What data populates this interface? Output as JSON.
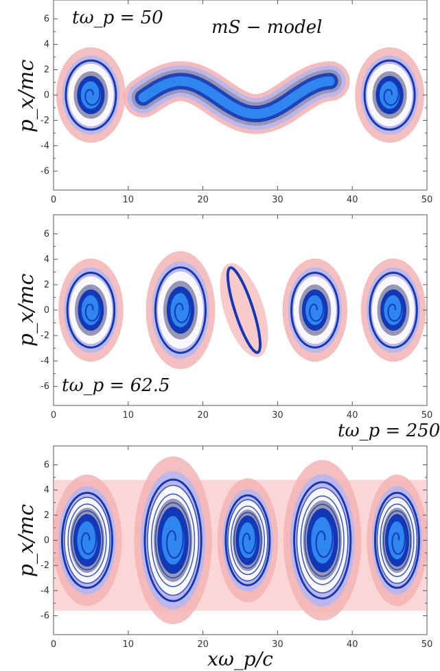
{
  "colors": {
    "core": "#2f86f0",
    "dark": "#1238b8",
    "halo_blue": "#b7b7ee",
    "halo_grey": "#8c8cab",
    "pink": "#f5b4b4",
    "axis": "#555555"
  },
  "chart_data": [
    {
      "type": "heatmap",
      "title": "mS − model",
      "annotation": "tω_p = 50",
      "xlabel": "",
      "ylabel": "p_x/mc",
      "xlim": [
        0,
        50
      ],
      "ylim": [
        -7.5,
        7.5
      ],
      "xticks": [
        "0",
        "10",
        "20",
        "30",
        "40",
        "50"
      ],
      "yticks": [
        "-6",
        "-4",
        "-2",
        "0",
        "2",
        "4",
        "6"
      ],
      "vortex_centers_x": [
        5,
        45
      ],
      "spiral_structures": [
        {
          "x": 5,
          "y": 0,
          "rx": 3.2,
          "ry": 2.6
        },
        {
          "x": 45,
          "y": 0,
          "rx": 3.2,
          "ry": 2.6
        }
      ],
      "band_structure": {
        "x_range": [
          12,
          37
        ],
        "y_center": -0.2,
        "amplitude": 1.3
      }
    },
    {
      "type": "heatmap",
      "annotation": "tω_p = 62.5",
      "xlabel": "",
      "ylabel": "p_x/mc",
      "xlim": [
        0,
        50
      ],
      "ylim": [
        -7.5,
        7.5
      ],
      "xticks": [
        "0",
        "10",
        "20",
        "30",
        "40",
        "50"
      ],
      "yticks": [
        "-6",
        "-4",
        "-2",
        "0",
        "2",
        "4",
        "6"
      ],
      "vortex_centers_x": [
        5,
        17,
        35,
        45
      ],
      "spiral_structures": [
        {
          "x": 5,
          "y": 0,
          "rx": 3.0,
          "ry": 2.8
        },
        {
          "x": 17,
          "y": 0,
          "rx": 3.2,
          "ry": 3.2
        },
        {
          "x": 35,
          "y": 0,
          "rx": 3.0,
          "ry": 2.8
        },
        {
          "x": 45.5,
          "y": 0,
          "rx": 3.0,
          "ry": 2.8
        }
      ],
      "extra_structures": [
        {
          "x": 25.5,
          "y": 0,
          "rx": 1.2,
          "ry": 3.5
        }
      ]
    },
    {
      "type": "heatmap",
      "annotation": "tω_p = 250",
      "xlabel": "xω_p/c",
      "ylabel": "p_x/mc",
      "xlim": [
        0,
        50
      ],
      "ylim": [
        -7.5,
        7.5
      ],
      "xticks": [
        "0",
        "10",
        "20",
        "30",
        "40",
        "50"
      ],
      "yticks": [
        "-6",
        "-4",
        "-2",
        "0",
        "2",
        "4",
        "6"
      ],
      "vortex_centers_x": [
        4.5,
        16,
        26,
        36,
        46
      ],
      "spiral_structures": [
        {
          "x": 4.5,
          "y": 0,
          "rx": 3.2,
          "ry": 3.6
        },
        {
          "x": 16,
          "y": 0,
          "rx": 3.6,
          "ry": 4.6
        },
        {
          "x": 26,
          "y": 0,
          "rx": 2.8,
          "ry": 3.4
        },
        {
          "x": 36,
          "y": 0,
          "rx": 3.6,
          "ry": 4.4
        },
        {
          "x": 46,
          "y": 0,
          "rx": 2.8,
          "ry": 3.6
        }
      ]
    }
  ]
}
